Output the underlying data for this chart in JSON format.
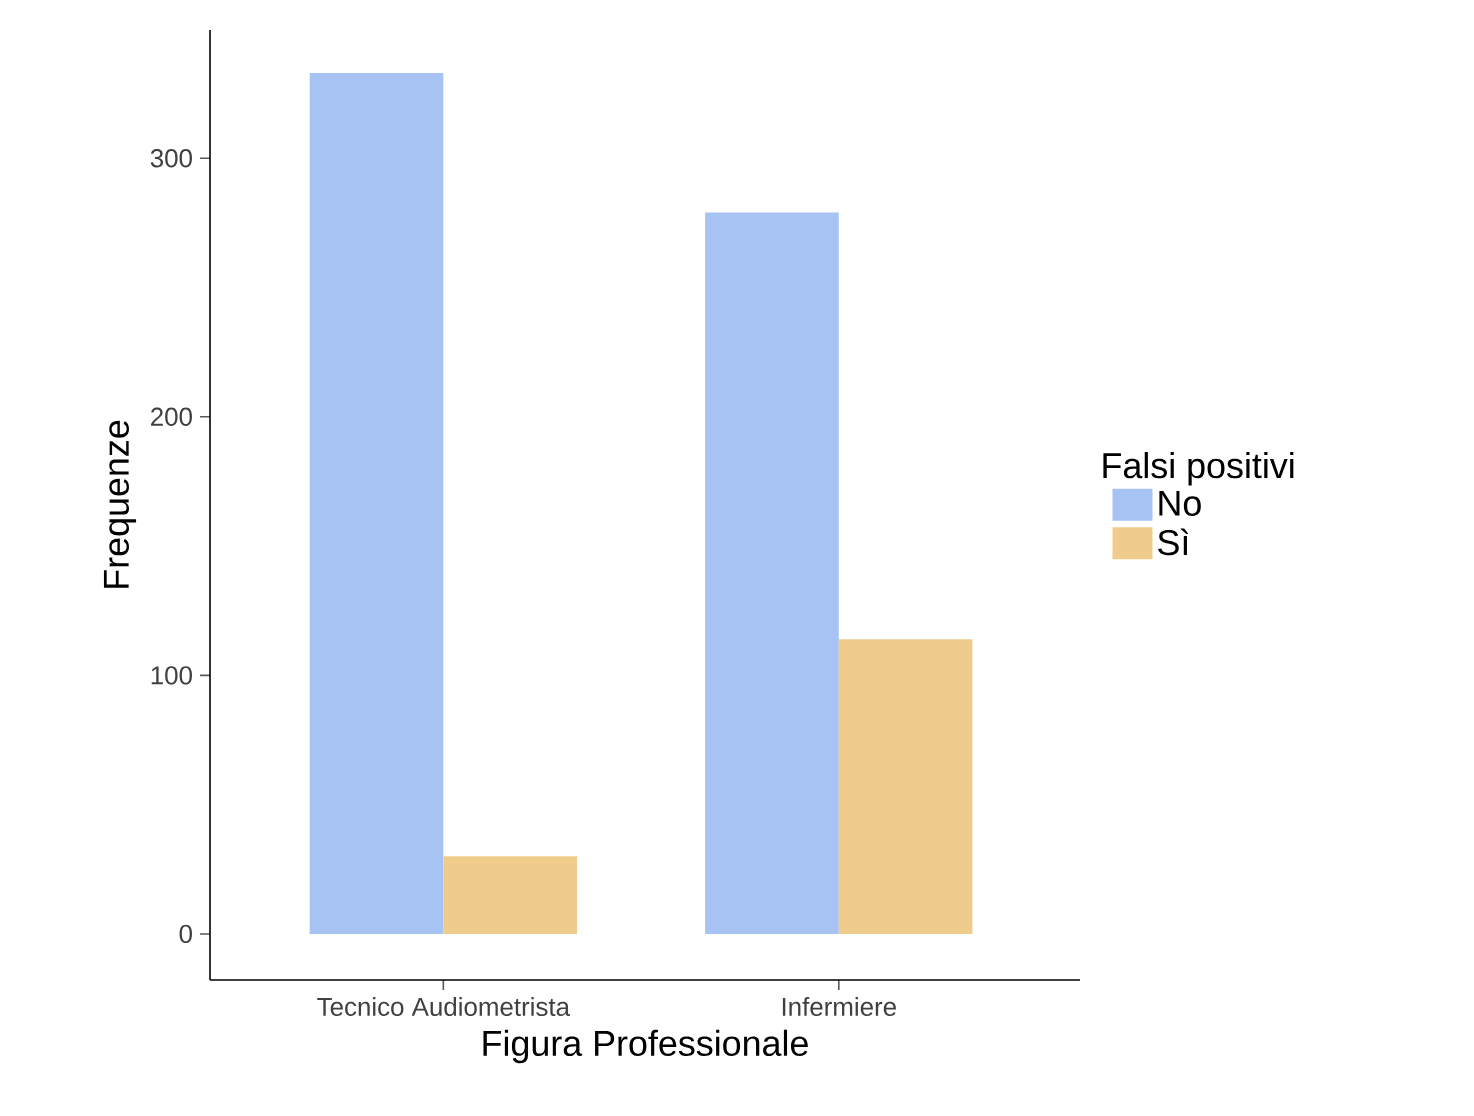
{
  "chart_data": {
    "type": "bar",
    "xlabel": "Figura Professionale",
    "ylabel": "Frequenze",
    "legend_title": "Falsi positivi",
    "categories": [
      "Tecnico Audiometrista",
      "Infermiere"
    ],
    "series": [
      {
        "name": "No",
        "color": "#a6c3f3",
        "values": [
          333,
          279
        ]
      },
      {
        "name": "Sì",
        "color": "#f0cc8c",
        "values": [
          30,
          114
        ]
      }
    ],
    "ylim": [
      -17.8,
      349.6
    ],
    "yticks": [
      0,
      100,
      200,
      300
    ],
    "legend": "right",
    "grid": false
  }
}
